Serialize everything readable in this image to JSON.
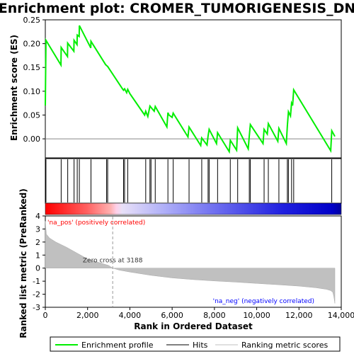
{
  "chart_data": {
    "title": "Enrichment plot: CROMER_TUMORIGENESIS_DN",
    "panels": {
      "es": {
        "type": "line",
        "ylabel": "Enrichment score (ES)",
        "ylim": [
          -0.04,
          0.25
        ],
        "yticks": [
          "0.25",
          "0.20",
          "0.15",
          "0.10",
          "0.05",
          "0.00"
        ],
        "ytick_values": [
          0.25,
          0.2,
          0.15,
          0.1,
          0.05,
          0.0
        ],
        "color": "#00ee00",
        "x": [
          0,
          30,
          740,
          750,
          1050,
          1060,
          1350,
          1360,
          1500,
          1510,
          1600,
          1610,
          2150,
          2160,
          2850,
          2900,
          2950,
          3650,
          3700,
          3750,
          3850,
          3900,
          4000,
          4700,
          4750,
          4850,
          4950,
          5000,
          5150,
          5200,
          5750,
          5800,
          5850,
          6000,
          6050,
          6750,
          6800,
          7350,
          7400,
          7650,
          7700,
          7750,
          8100,
          8150,
          8700,
          8750,
          9050,
          9100,
          9600,
          9650,
          9700,
          10300,
          10350,
          10500,
          10550,
          11000,
          11050,
          11400,
          11450,
          11500,
          11600,
          11650,
          11700,
          11750,
          13500,
          13550,
          13700
        ],
        "y": [
          0.07,
          0.207,
          0.155,
          0.192,
          0.173,
          0.201,
          0.184,
          0.207,
          0.198,
          0.218,
          0.215,
          0.238,
          0.191,
          0.205,
          0.156,
          0.154,
          0.152,
          0.105,
          0.102,
          0.105,
          0.097,
          0.104,
          0.095,
          0.05,
          0.058,
          0.047,
          0.069,
          0.066,
          0.058,
          0.068,
          0.025,
          0.055,
          0.05,
          0.045,
          0.054,
          0.004,
          0.025,
          -0.014,
          0.002,
          -0.013,
          0.006,
          0.02,
          -0.01,
          0.013,
          -0.027,
          -0.003,
          -0.024,
          0.023,
          -0.021,
          0.006,
          0.03,
          -0.01,
          0.02,
          0.01,
          0.032,
          -0.005,
          0.022,
          -0.01,
          0.028,
          0.057,
          0.048,
          0.075,
          0.07,
          0.103,
          -0.025,
          0.017,
          0.005
        ]
      },
      "hits": {
        "type": "scatter",
        "positions": [
          30,
          750,
          1060,
          1360,
          1510,
          1610,
          2160,
          2900,
          2950,
          3700,
          3750,
          3900,
          4750,
          4950,
          5000,
          5200,
          5800,
          6050,
          6800,
          7400,
          7700,
          7750,
          8150,
          8750,
          9100,
          9650,
          9700,
          10350,
          10550,
          11050,
          11450,
          11500,
          11650,
          11750,
          13550
        ]
      },
      "metric": {
        "type": "area",
        "xlabel": "Rank in Ordered Dataset",
        "ylabel": "Ranked list metric (PreRanked)",
        "xlim": [
          0,
          14000
        ],
        "ylim": [
          -3,
          4
        ],
        "xticks": [
          "0",
          "2,000",
          "4,000",
          "6,000",
          "8,000",
          "10,000",
          "12,000",
          "14,000"
        ],
        "xtick_values": [
          0,
          2000,
          4000,
          6000,
          8000,
          10000,
          12000,
          14000
        ],
        "yticks": [
          "4",
          "3",
          "2",
          "1",
          "0",
          "-1",
          "-2",
          "-3"
        ],
        "ytick_values": [
          4,
          3,
          2,
          1,
          0,
          -1,
          -2,
          -3
        ],
        "x": [
          0,
          50,
          200,
          500,
          1000,
          1500,
          2000,
          2500,
          3000,
          3188,
          3500,
          4000,
          5000,
          6000,
          7000,
          8000,
          9000,
          10000,
          11000,
          12000,
          12800,
          13300,
          13500,
          13600,
          13650,
          13700
        ],
        "y": [
          3.6,
          2.6,
          2.3,
          2.0,
          1.6,
          1.15,
          0.7,
          0.45,
          0.2,
          0.0,
          -0.15,
          -0.3,
          -0.55,
          -0.75,
          -0.88,
          -0.98,
          -1.07,
          -1.17,
          -1.27,
          -1.38,
          -1.5,
          -1.62,
          -1.72,
          -1.85,
          -2.2,
          -2.7
        ],
        "zero_cross": 3188,
        "zero_cross_label": "Zero cross at 3188",
        "pos_label": "'na_pos' (positively correlated)",
        "neg_label": "'na_neg' (negatively correlated)",
        "pos_color": "#ff0000",
        "neg_color": "#0000ff",
        "fill_color": "#c0c0c0"
      }
    },
    "legend": {
      "placement": "bottom",
      "entries": [
        {
          "label": "Enrichment profile",
          "color": "#00ee00"
        },
        {
          "label": "Hits",
          "color": "#000000"
        },
        {
          "label": "Ranking metric scores",
          "color": "#c0c0c0"
        }
      ]
    }
  }
}
